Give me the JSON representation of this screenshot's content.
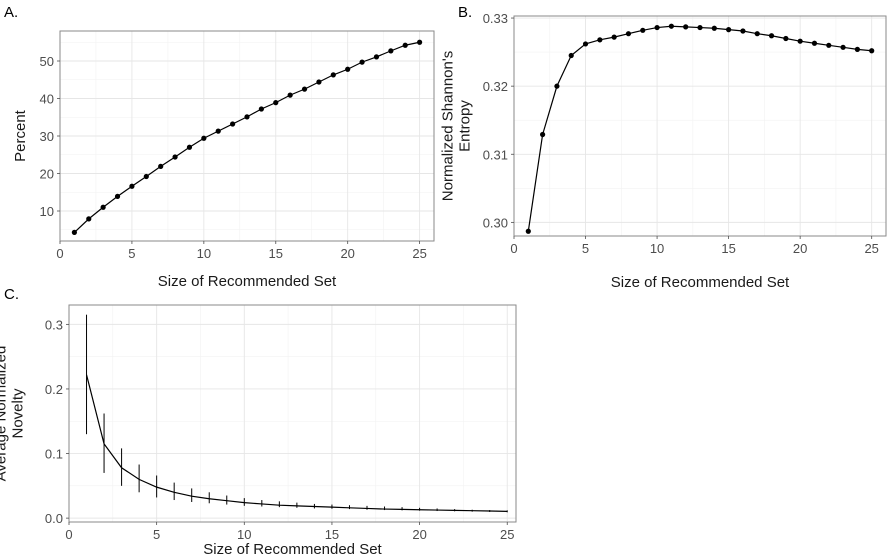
{
  "chart_data": [
    {
      "panel_label": "A.",
      "type": "line",
      "xlabel": "Size of Recommended Set",
      "ylabel": "Percent",
      "xlim": [
        0,
        26
      ],
      "ylim": [
        2,
        58
      ],
      "xticks": [
        0,
        5,
        10,
        15,
        20,
        25
      ],
      "yticks": [
        10,
        20,
        30,
        40,
        50
      ],
      "markers": true,
      "grid": true,
      "x": [
        1,
        2,
        3,
        4,
        5,
        6,
        7,
        8,
        9,
        10,
        11,
        12,
        13,
        14,
        15,
        16,
        17,
        18,
        19,
        20,
        21,
        22,
        23,
        24,
        25
      ],
      "y": [
        4.3,
        7.9,
        11.0,
        13.9,
        16.6,
        19.2,
        21.9,
        24.4,
        27.0,
        29.4,
        31.3,
        33.2,
        35.1,
        37.2,
        38.9,
        40.9,
        42.5,
        44.4,
        46.3,
        47.8,
        49.7,
        51.1,
        52.7,
        54.2,
        55.0
      ]
    },
    {
      "panel_label": "B.",
      "type": "line",
      "xlabel": "Size of Recommended Set",
      "ylabel": [
        "Normalized Shannon's",
        "Entropy"
      ],
      "xlim": [
        0,
        26
      ],
      "ylim": [
        0.298,
        0.3303
      ],
      "xticks": [
        0,
        5,
        10,
        15,
        20,
        25
      ],
      "yticks": [
        0.3,
        0.31,
        0.32,
        0.33
      ],
      "ytick_labels": [
        "0.30",
        "0.31",
        "0.32",
        "0.33"
      ],
      "markers": true,
      "grid": true,
      "x": [
        1,
        2,
        3,
        4,
        5,
        6,
        7,
        8,
        9,
        10,
        11,
        12,
        13,
        14,
        15,
        16,
        17,
        18,
        19,
        20,
        21,
        22,
        23,
        24,
        25
      ],
      "y": [
        0.2987,
        0.3129,
        0.32,
        0.3245,
        0.3262,
        0.3268,
        0.3272,
        0.3277,
        0.3282,
        0.3286,
        0.3288,
        0.3287,
        0.3286,
        0.3285,
        0.3283,
        0.3281,
        0.3277,
        0.3274,
        0.327,
        0.3266,
        0.3263,
        0.326,
        0.3257,
        0.3254,
        0.3252
      ]
    },
    {
      "panel_label": "C.",
      "type": "line",
      "xlabel": "Size of Recommended Set",
      "ylabel": [
        "Average Normalized",
        "Novelty"
      ],
      "xlim": [
        0,
        25.5
      ],
      "ylim": [
        -0.006,
        0.33
      ],
      "xticks": [
        0,
        5,
        10,
        15,
        20,
        25
      ],
      "yticks": [
        0.0,
        0.1,
        0.2,
        0.3
      ],
      "ytick_labels": [
        "0.0",
        "0.1",
        "0.2",
        "0.3"
      ],
      "markers": false,
      "error_bars": true,
      "grid": true,
      "x": [
        1,
        2,
        3,
        4,
        5,
        6,
        7,
        8,
        9,
        10,
        11,
        12,
        13,
        14,
        15,
        16,
        17,
        18,
        19,
        20,
        21,
        22,
        23,
        24,
        25
      ],
      "y": [
        0.222,
        0.115,
        0.078,
        0.06,
        0.048,
        0.04,
        0.034,
        0.03,
        0.027,
        0.024,
        0.022,
        0.02,
        0.019,
        0.018,
        0.017,
        0.016,
        0.015,
        0.014,
        0.0135,
        0.013,
        0.0125,
        0.012,
        0.0115,
        0.011,
        0.0105
      ],
      "lower": [
        0.13,
        0.07,
        0.05,
        0.04,
        0.032,
        0.028,
        0.025,
        0.023,
        0.021,
        0.019,
        0.018,
        0.017,
        0.016,
        0.015,
        0.0145,
        0.014,
        0.013,
        0.0125,
        0.012,
        0.0115,
        0.011,
        0.0105,
        0.01,
        0.0095,
        0.009
      ],
      "upper": [
        0.315,
        0.162,
        0.108,
        0.083,
        0.066,
        0.055,
        0.046,
        0.04,
        0.035,
        0.031,
        0.028,
        0.026,
        0.024,
        0.022,
        0.021,
        0.02,
        0.019,
        0.018,
        0.017,
        0.016,
        0.015,
        0.014,
        0.013,
        0.0125,
        0.012
      ]
    }
  ]
}
